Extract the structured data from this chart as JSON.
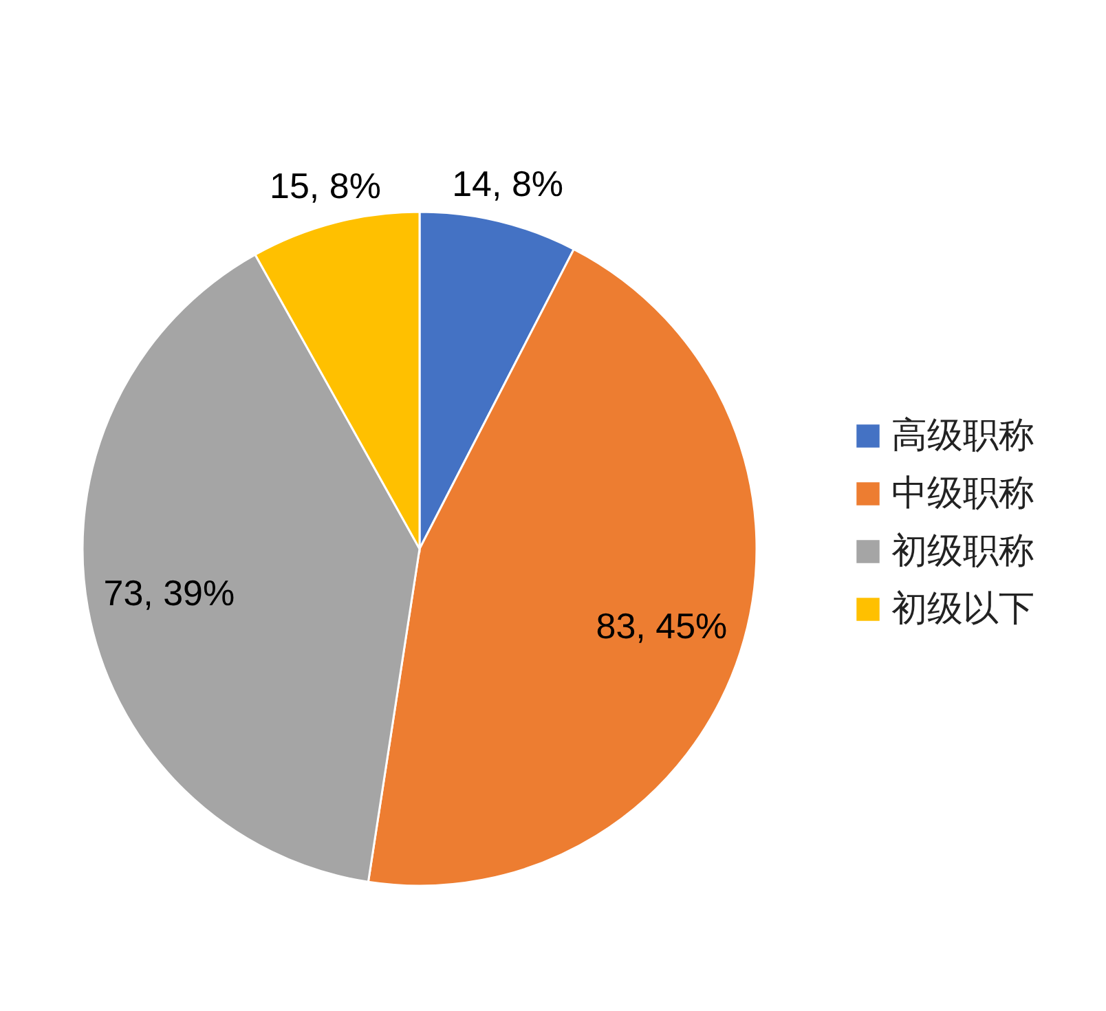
{
  "chart_data": {
    "type": "pie",
    "categories": [
      "高级职称",
      "中级职称",
      "初级职称",
      "初级以下"
    ],
    "values": [
      14,
      83,
      73,
      15
    ],
    "colors": [
      "#4472c4",
      "#ed7d31",
      "#a5a5a5",
      "#ffc000"
    ],
    "value_labels": [
      "14, 8%",
      "83, 45%",
      "73, 39%",
      "15, 8%"
    ],
    "legend": "right"
  }
}
